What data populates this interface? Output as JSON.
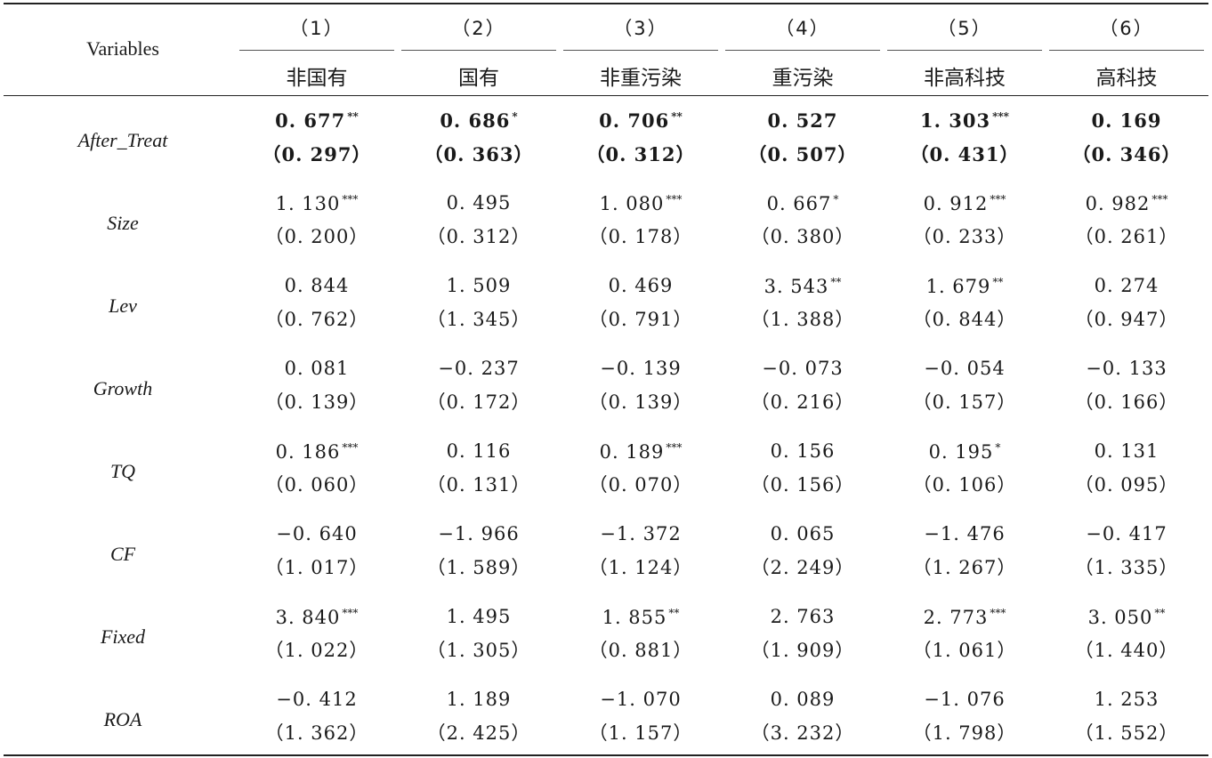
{
  "header": {
    "variables_label": "Variables",
    "columns": [
      {
        "num": "（1）",
        "name": "非国有"
      },
      {
        "num": "（2）",
        "name": "国有"
      },
      {
        "num": "（3）",
        "name": "非重污染"
      },
      {
        "num": "（4）",
        "name": "重污染"
      },
      {
        "num": "（5）",
        "name": "非高科技"
      },
      {
        "num": "（6）",
        "name": "高科技"
      }
    ]
  },
  "rows": [
    {
      "name": "After_Treat",
      "bold": true,
      "cells": [
        {
          "coef": "0. 677",
          "stars": "**",
          "se": "（0. 297）"
        },
        {
          "coef": "0. 686",
          "stars": "*",
          "se": "（0. 363）"
        },
        {
          "coef": "0. 706",
          "stars": "**",
          "se": "（0. 312）"
        },
        {
          "coef": "0. 527",
          "stars": "",
          "se": "（0. 507）"
        },
        {
          "coef": "1. 303",
          "stars": "***",
          "se": "（0. 431）"
        },
        {
          "coef": "0. 169",
          "stars": "",
          "se": "（0. 346）"
        }
      ]
    },
    {
      "name": "Size",
      "bold": false,
      "cells": [
        {
          "coef": "1. 130",
          "stars": "***",
          "se": "（0. 200）"
        },
        {
          "coef": "0. 495",
          "stars": "",
          "se": "（0. 312）"
        },
        {
          "coef": "1. 080",
          "stars": "***",
          "se": "（0. 178）"
        },
        {
          "coef": "0. 667",
          "stars": "*",
          "se": "（0. 380）"
        },
        {
          "coef": "0. 912",
          "stars": "***",
          "se": "（0. 233）"
        },
        {
          "coef": "0. 982",
          "stars": "***",
          "se": "（0. 261）"
        }
      ]
    },
    {
      "name": "Lev",
      "bold": false,
      "cells": [
        {
          "coef": "0. 844",
          "stars": "",
          "se": "（0. 762）"
        },
        {
          "coef": "1. 509",
          "stars": "",
          "se": "（1. 345）"
        },
        {
          "coef": "0. 469",
          "stars": "",
          "se": "（0. 791）"
        },
        {
          "coef": "3. 543",
          "stars": "**",
          "se": "（1. 388）"
        },
        {
          "coef": "1. 679",
          "stars": "**",
          "se": "（0. 844）"
        },
        {
          "coef": "0. 274",
          "stars": "",
          "se": "（0. 947）"
        }
      ]
    },
    {
      "name": "Growth",
      "bold": false,
      "cells": [
        {
          "coef": "0. 081",
          "stars": "",
          "se": "（0. 139）"
        },
        {
          "coef": "−0. 237",
          "stars": "",
          "se": "（0. 172）"
        },
        {
          "coef": "−0. 139",
          "stars": "",
          "se": "（0. 139）"
        },
        {
          "coef": "−0. 073",
          "stars": "",
          "se": "（0. 216）"
        },
        {
          "coef": "−0. 054",
          "stars": "",
          "se": "（0. 157）"
        },
        {
          "coef": "−0. 133",
          "stars": "",
          "se": "（0. 166）"
        }
      ]
    },
    {
      "name": "TQ",
      "bold": false,
      "cells": [
        {
          "coef": "0. 186",
          "stars": "***",
          "se": "（0. 060）"
        },
        {
          "coef": "0. 116",
          "stars": "",
          "se": "（0. 131）"
        },
        {
          "coef": "0. 189",
          "stars": "***",
          "se": "（0. 070）"
        },
        {
          "coef": "0. 156",
          "stars": "",
          "se": "（0. 156）"
        },
        {
          "coef": "0. 195",
          "stars": "*",
          "se": "（0. 106）"
        },
        {
          "coef": "0. 131",
          "stars": "",
          "se": "（0. 095）"
        }
      ]
    },
    {
      "name": "CF",
      "bold": false,
      "cells": [
        {
          "coef": "−0. 640",
          "stars": "",
          "se": "（1. 017）"
        },
        {
          "coef": "−1. 966",
          "stars": "",
          "se": "（1. 589）"
        },
        {
          "coef": "−1. 372",
          "stars": "",
          "se": "（1. 124）"
        },
        {
          "coef": "0. 065",
          "stars": "",
          "se": "（2. 249）"
        },
        {
          "coef": "−1. 476",
          "stars": "",
          "se": "（1. 267）"
        },
        {
          "coef": "−0. 417",
          "stars": "",
          "se": "（1. 335）"
        }
      ]
    },
    {
      "name": "Fixed",
      "bold": false,
      "cells": [
        {
          "coef": "3. 840",
          "stars": "***",
          "se": "（1. 022）"
        },
        {
          "coef": "1. 495",
          "stars": "",
          "se": "（1. 305）"
        },
        {
          "coef": "1. 855",
          "stars": "**",
          "se": "（0. 881）"
        },
        {
          "coef": "2. 763",
          "stars": "",
          "se": "（1. 909）"
        },
        {
          "coef": "2. 773",
          "stars": "***",
          "se": "（1. 061）"
        },
        {
          "coef": "3. 050",
          "stars": "**",
          "se": "（1. 440）"
        }
      ]
    },
    {
      "name": "ROA",
      "bold": false,
      "cells": [
        {
          "coef": "−0. 412",
          "stars": "",
          "se": "（1. 362）"
        },
        {
          "coef": "1. 189",
          "stars": "",
          "se": "（2. 425）"
        },
        {
          "coef": "−1. 070",
          "stars": "",
          "se": "（1. 157）"
        },
        {
          "coef": "0. 089",
          "stars": "",
          "se": "（3. 232）"
        },
        {
          "coef": "−1. 076",
          "stars": "",
          "se": "（1. 798）"
        },
        {
          "coef": "1. 253",
          "stars": "",
          "se": "（1. 552）"
        }
      ]
    }
  ]
}
